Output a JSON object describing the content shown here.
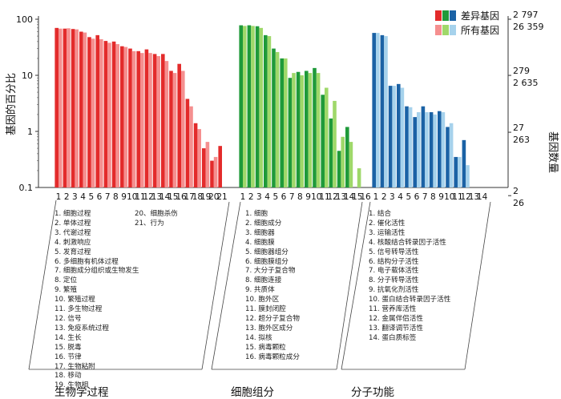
{
  "chart_data": {
    "type": "bar",
    "ylabel_left": "基因的百分比",
    "ylabel_right": "基因数量",
    "yscale": "log",
    "ylim": [
      0.1,
      100
    ],
    "left_ticks": [
      "100",
      "10",
      "1",
      "0.1"
    ],
    "right_ticks": [
      {
        "at": 2797,
        "upper": "2 797",
        "lower": "26 359"
      },
      {
        "at": 279,
        "upper": "279",
        "lower": "2 635"
      },
      {
        "at": 27,
        "upper": "27",
        "lower": "263"
      },
      {
        "at": 2,
        "upper": "2",
        "lower": "26"
      }
    ],
    "legend": [
      "差异基因",
      "所有基因"
    ],
    "groups": [
      {
        "name": "生物学过程",
        "colors": {
          "diff": "#e32b2b",
          "all": "#f58f8f"
        },
        "ticks": [
          "1",
          "2",
          "3",
          "4",
          "5",
          "6",
          "7",
          "8",
          "9",
          "10",
          "11",
          "12",
          "13",
          "14",
          "15",
          "16",
          "17",
          "18",
          "19",
          "20",
          "21"
        ],
        "labels": [
          "1. 细胞过程",
          "2. 单体过程",
          "3. 代谢过程",
          "4. 刺激响应",
          "5. 发育过程",
          "6. 多细胞有机体过程",
          "7. 细胞成分组织或生物发生",
          "8. 定位",
          "9. 繁殖",
          "10. 繁殖过程",
          "11. 多生物过程",
          "12. 信号",
          "13. 免疫系统过程",
          "14. 生长",
          "15. 脱毒",
          "16. 节律",
          "17. 生物粘附",
          "18. 移动",
          "19. 生物相"
        ],
        "labels_extra": [
          "20、细胞杀伤",
          "21、行为"
        ],
        "diff": [
          70,
          68,
          67,
          60,
          48,
          52,
          41,
          40,
          33,
          30,
          27,
          29,
          24,
          24,
          12,
          16,
          3.8,
          1.4,
          0.5,
          0.3,
          0.55
        ],
        "all": [
          68,
          69,
          66,
          58,
          45,
          44,
          38,
          36,
          32,
          27,
          25,
          25,
          22,
          18,
          11,
          12,
          2.8,
          1.1,
          0.65,
          0.35,
          null
        ]
      },
      {
        "name": "细胞组分",
        "colors": {
          "diff": "#1f9a3a",
          "all": "#9fd86a"
        },
        "ticks": [
          "1",
          "2",
          "3",
          "4",
          "5",
          "6",
          "7",
          "8",
          "9",
          "10",
          "11",
          "12",
          "13",
          "14",
          "15",
          "16"
        ],
        "labels": [
          "1. 细胞",
          "2. 细胞成分",
          "3. 细胞器",
          "4. 细胞膜",
          "5. 细胞器组分",
          "6. 细胞膜组分",
          "7. 大分子复合物",
          "8. 细胞连接",
          "9. 共质体",
          "10. 胞外区",
          "11. 膜封闭腔",
          "12. 超分子复合物",
          "13. 胞外区成分",
          "14. 拟核",
          "15. 病毒颗粒",
          "16. 病毒颗粒成分"
        ],
        "diff": [
          78,
          78,
          75,
          52,
          30,
          20,
          9,
          11.5,
          12,
          13.5,
          4.5,
          1.7,
          0.45,
          1.2,
          null,
          null
        ],
        "all": [
          76,
          76,
          70,
          50,
          26,
          20,
          11,
          10,
          11,
          11,
          6,
          3.5,
          0.8,
          0.65,
          0.22,
          null
        ]
      },
      {
        "name": "分子功能",
        "colors": {
          "diff": "#1b62a5",
          "all": "#a6d2ec"
        },
        "ticks": [
          "1",
          "2",
          "3",
          "4",
          "5",
          "6",
          "7",
          "8",
          "9",
          "10",
          "11",
          "12",
          "13",
          "14"
        ],
        "labels": [
          "1. 结合",
          "2. 催化活性",
          "3. 运输活性",
          "4. 核酸结合转录因子活性",
          "5. 信号转导活性",
          "6. 结构分子活性",
          "7. 电子载体活性",
          "8. 分子转导活性",
          "9. 抗氧化剂活性",
          "10. 蛋白结合转录因子活性",
          "11. 营养库活性",
          "12. 金属伴侣活性",
          "13. 翻译调节活性",
          "14. 蛋白质标签"
        ],
        "diff": [
          57,
          52,
          6.5,
          7,
          2.8,
          1.8,
          2.8,
          2.2,
          2.3,
          1.2,
          0.35,
          0.7,
          null,
          null
        ],
        "all": [
          57,
          50,
          6.5,
          6,
          2.7,
          2.2,
          2.2,
          2.0,
          2.2,
          1.4,
          0.35,
          0.25,
          null,
          null
        ]
      }
    ]
  }
}
